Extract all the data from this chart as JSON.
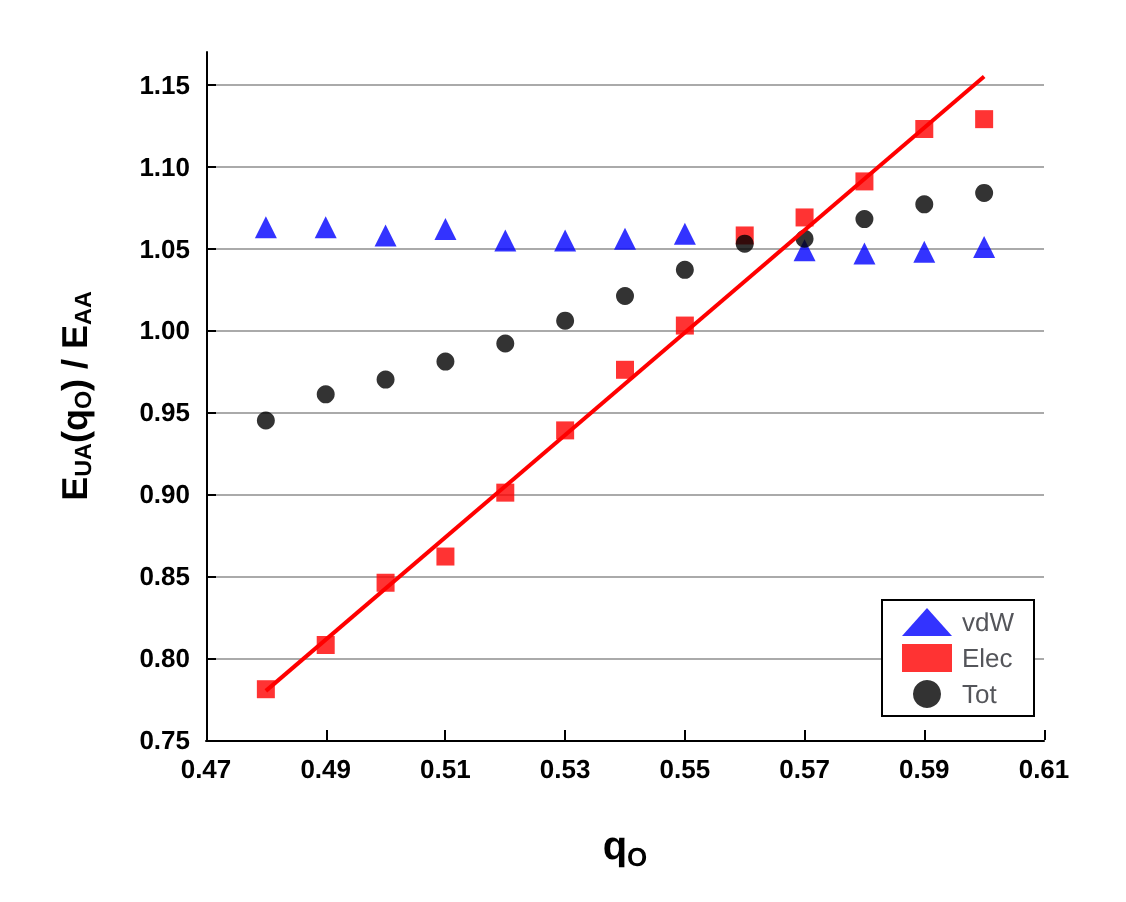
{
  "chart_data": {
    "type": "scatter",
    "xlabel": "q$_{O}$",
    "ylabel": "E$_{UA}$(q$_{O}$) / E$_{AA}$",
    "x": [
      0.48,
      0.49,
      0.5,
      0.51,
      0.52,
      0.53,
      0.54,
      0.55,
      0.56,
      0.57,
      0.58,
      0.59,
      0.6
    ],
    "series": [
      {
        "name": "vdW",
        "color": "#0000ff",
        "marker": "triangle",
        "values": [
          1.063,
          1.063,
          1.058,
          1.062,
          1.055,
          1.055,
          1.056,
          1.059,
          null,
          1.049,
          1.047,
          1.048,
          1.051
        ]
      },
      {
        "name": "Elec",
        "color": "#ff0000",
        "marker": "square",
        "values": [
          0.781,
          0.808,
          0.846,
          0.862,
          0.901,
          0.939,
          0.976,
          1.003,
          1.058,
          1.069,
          1.091,
          1.123,
          1.129
        ]
      },
      {
        "name": "Tot",
        "color": "#000000",
        "marker": "circle",
        "values": [
          0.945,
          0.961,
          0.97,
          0.981,
          0.992,
          1.006,
          1.021,
          1.037,
          1.053,
          1.056,
          1.068,
          1.077,
          1.084
        ]
      },
      {
        "type": "line",
        "color": "#ff0000",
        "marker": "none",
        "line_style": "solid",
        "x": [
          0.48,
          0.6
        ],
        "values": [
          0.78,
          1.155
        ]
      }
    ],
    "xlim": [
      0.47,
      0.61
    ],
    "xticks": [
      0.47,
      0.49,
      0.51,
      0.53,
      0.55,
      0.57,
      0.59,
      0.61
    ],
    "ylim": [
      0.75,
      1.17
    ],
    "yticks": [
      0.75,
      {
        "value": 0.8,
        "label": "0.80"
      },
      0.85,
      {
        "value": 0.9,
        "label": "0.90"
      },
      0.95,
      {
        "value": 1,
        "label": "1.00"
      },
      1.05,
      {
        "value": 1.1,
        "label": "1.10"
      },
      1.15
    ],
    "grid": "y",
    "legend": "bottom right"
  }
}
